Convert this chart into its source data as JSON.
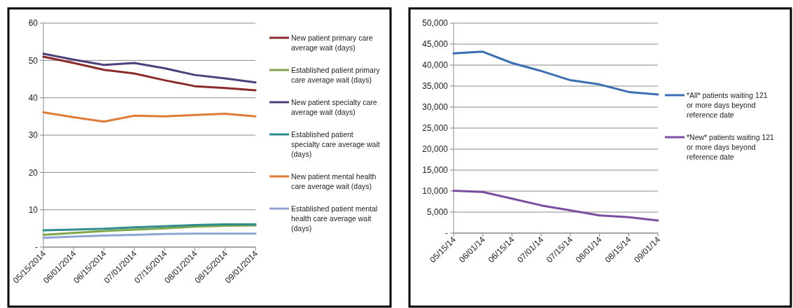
{
  "chart_data": [
    {
      "type": "line",
      "categories": [
        "05/15/2014",
        "06/01/2014",
        "06/15/2014",
        "07/01/2014",
        "07/15/2014",
        "08/01/2014",
        "08/15/2014",
        "09/01/2014"
      ],
      "ylim": [
        0,
        60
      ],
      "yticks": [
        {
          "value": 0,
          "label": "-"
        },
        10,
        20,
        30,
        40,
        50,
        60
      ],
      "grid": "y",
      "legend": "right",
      "line_style": "solid",
      "series": [
        {
          "name": "New patient primary care average wait (days)",
          "color": "#8b2a2a",
          "values": [
            51,
            49.3,
            47.5,
            46.5,
            44.7,
            43.1,
            42.6,
            42
          ]
        },
        {
          "name": "Established patient primary care average wait (days)",
          "color": "#7fa64a",
          "values": [
            3.3,
            3.8,
            4.3,
            4.7,
            5,
            5.5,
            5.7,
            5.8
          ]
        },
        {
          "name": "New patient specialty care average wait (days)",
          "color": "#4f3f7a",
          "values": [
            51.8,
            50.2,
            48.8,
            49.3,
            47.9,
            46.1,
            45.2,
            44.1
          ]
        },
        {
          "name": "Established patient specialty care average wait (days)",
          "color": "#2e8c8c",
          "values": [
            4.5,
            4.7,
            4.9,
            5.3,
            5.6,
            5.9,
            6.1,
            6.1
          ]
        },
        {
          "name": "New patient mental health care average wait (days)",
          "color": "#e07b39",
          "values": [
            36.1,
            34.8,
            33.6,
            35.2,
            35,
            35.4,
            35.7,
            35
          ]
        },
        {
          "name": "Established patient mental health care average wait (days)",
          "color": "#8ea4d2",
          "values": [
            2.5,
            2.8,
            3.1,
            3.3,
            3.5,
            3.6,
            3.6,
            3.6
          ]
        }
      ]
    },
    {
      "type": "line",
      "categories": [
        "05/15/14",
        "06/01/14",
        "06/15/14",
        "07/01/14",
        "07/15/14",
        "08/01/14",
        "08/15/14",
        "09/01/14"
      ],
      "ylim": [
        0,
        50000
      ],
      "yticks": [
        {
          "value": 0,
          "label": "-"
        },
        {
          "value": 5000,
          "label": "5,000"
        },
        {
          "value": 10000,
          "label": "10,000"
        },
        {
          "value": 15000,
          "label": "15,000"
        },
        {
          "value": 20000,
          "label": "20,000"
        },
        {
          "value": 25000,
          "label": "25,000"
        },
        {
          "value": 30000,
          "label": "30,000"
        },
        {
          "value": 35000,
          "label": "35,000"
        },
        {
          "value": 40000,
          "label": "40,000"
        },
        {
          "value": 45000,
          "label": "45,000"
        },
        {
          "value": 50000,
          "label": "50,000"
        }
      ],
      "grid": "y",
      "legend": "right",
      "line_style": "solid",
      "series": [
        {
          "name": "*All* patients waiting 121 or more days beyond reference date",
          "color": "#3a6eb0",
          "values": [
            42800,
            43200,
            40500,
            38600,
            36400,
            35400,
            33600,
            33000
          ]
        },
        {
          "name": "*New* patients waiting 121 or more days beyond reference date",
          "color": "#7a4fa0",
          "values": [
            10100,
            9800,
            8200,
            6600,
            5400,
            4200,
            3800,
            3000
          ]
        }
      ]
    }
  ]
}
